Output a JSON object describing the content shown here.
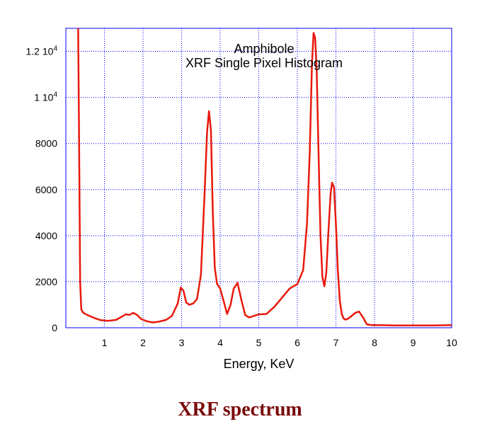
{
  "caption": "XRF spectrum",
  "colors": {
    "series": "#e8190c",
    "grid": "#0000ff",
    "caption": "#7a0a0a"
  },
  "chart_data": {
    "type": "line",
    "title": "Amphibole",
    "subtitle": "XRF Single Pixel Histogram",
    "xlabel": "Energy, KeV",
    "ylabel": "",
    "xlim": [
      0,
      10
    ],
    "ylim": [
      0,
      13000
    ],
    "grid": true,
    "x_ticks": [
      {
        "value": 1,
        "label": "1"
      },
      {
        "value": 2,
        "label": "2"
      },
      {
        "value": 3,
        "label": "3"
      },
      {
        "value": 4,
        "label": "4"
      },
      {
        "value": 5,
        "label": "5"
      },
      {
        "value": 6,
        "label": "6"
      },
      {
        "value": 7,
        "label": "7"
      },
      {
        "value": 8,
        "label": "8"
      },
      {
        "value": 9,
        "label": "9"
      },
      {
        "value": 10,
        "label": "10"
      }
    ],
    "y_ticks": [
      {
        "value": 0,
        "label": "0"
      },
      {
        "value": 2000,
        "label": "2000"
      },
      {
        "value": 4000,
        "label": "4000"
      },
      {
        "value": 6000,
        "label": "6000"
      },
      {
        "value": 8000,
        "label": "8000"
      },
      {
        "value": 10000,
        "label": "1 10",
        "sup": "4"
      },
      {
        "value": 12000,
        "label": "1.2 10",
        "sup": "4"
      }
    ],
    "series": [
      {
        "x": [
          0.32,
          0.34,
          0.37,
          0.4,
          0.45,
          0.55,
          0.7,
          0.9,
          1.1,
          1.3,
          1.45,
          1.55,
          1.65,
          1.75,
          1.85,
          1.95,
          2.1,
          2.25,
          2.4,
          2.6,
          2.75,
          2.9,
          2.98,
          3.05,
          3.12,
          3.2,
          3.3,
          3.4,
          3.5,
          3.6,
          3.66,
          3.71,
          3.76,
          3.81,
          3.86,
          3.92,
          4.0,
          4.1,
          4.18,
          4.27,
          4.35,
          4.45,
          4.55,
          4.65,
          4.75,
          4.85,
          5.0,
          5.2,
          5.4,
          5.6,
          5.8,
          6.0,
          6.15,
          6.25,
          6.32,
          6.38,
          6.42,
          6.46,
          6.5,
          6.55,
          6.6,
          6.65,
          6.7,
          6.75,
          6.8,
          6.86,
          6.9,
          6.95,
          7.0,
          7.05,
          7.1,
          7.15,
          7.2,
          7.25,
          7.3,
          7.4,
          7.5,
          7.6,
          7.7,
          7.8,
          7.9,
          8.0,
          8.2,
          8.5,
          9.0,
          9.5,
          10.0
        ],
        "y": [
          13000,
          9000,
          2000,
          800,
          650,
          560,
          450,
          330,
          300,
          340,
          480,
          580,
          560,
          650,
          550,
          380,
          280,
          230,
          260,
          340,
          520,
          1050,
          1750,
          1600,
          1100,
          1000,
          1050,
          1250,
          2300,
          6000,
          8500,
          9400,
          8600,
          5000,
          2600,
          1900,
          1700,
          1100,
          600,
          1000,
          1700,
          1950,
          1200,
          550,
          450,
          500,
          580,
          600,
          900,
          1300,
          1700,
          1900,
          2500,
          4500,
          7500,
          11500,
          12800,
          12600,
          11200,
          7500,
          4000,
          2200,
          1800,
          2400,
          4000,
          5800,
          6300,
          6100,
          4500,
          2500,
          1200,
          600,
          400,
          350,
          380,
          500,
          650,
          700,
          450,
          150,
          120,
          110,
          110,
          100,
          100,
          100,
          110
        ]
      }
    ]
  }
}
